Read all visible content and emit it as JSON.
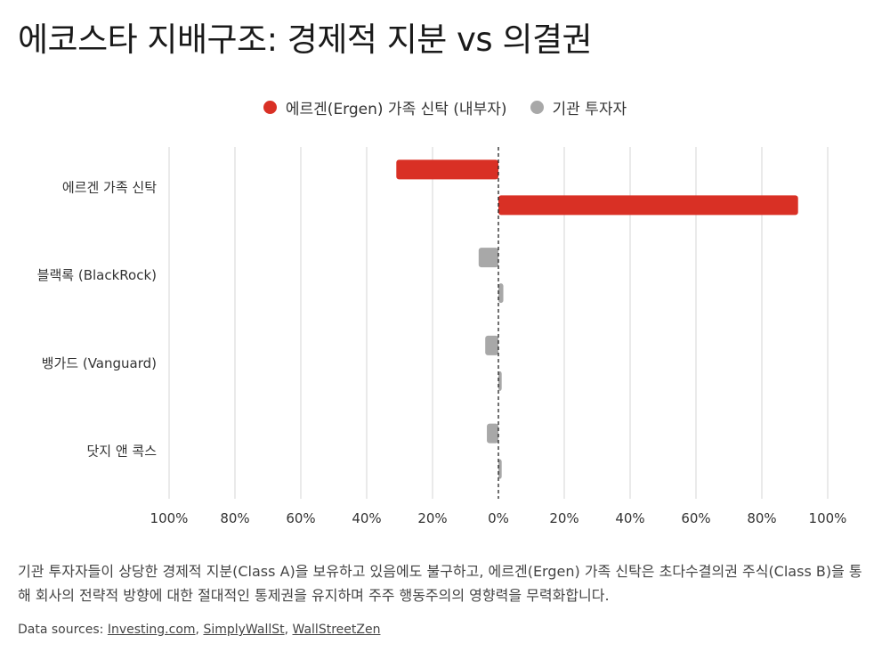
{
  "title": "에코스타 지배구조: 경제적 지분 vs 의결권",
  "legend": [
    {
      "label": "에르겐(Ergen) 가족 신탁 (내부자)",
      "color": "#d93025"
    },
    {
      "label": "기관 투자자",
      "color": "#a8a8a8"
    }
  ],
  "chart_data": {
    "type": "bar",
    "orientation": "horizontal",
    "categories": [
      "에르겐 가족 신탁",
      "블랙록 (BlackRock)",
      "뱅가드 (Vanguard)",
      "닷지 앤 콕스"
    ],
    "x_ticks": [
      "100%",
      "80%",
      "60%",
      "40%",
      "20%",
      "0%",
      "20%",
      "40%",
      "60%",
      "80%",
      "100%"
    ],
    "xlim": [
      -100,
      100
    ],
    "grid": true,
    "legend_position": "top",
    "bars": [
      {
        "category": "에르겐 가족 신탁",
        "left": -31,
        "right": 91,
        "color": "#d93025"
      },
      {
        "category": "블랙록 (BlackRock)",
        "left": -6,
        "right": 1.5,
        "color": "#a8a8a8"
      },
      {
        "category": "뱅가드 (Vanguard)",
        "left": -4,
        "right": 1,
        "color": "#a8a8a8"
      },
      {
        "category": "닷지 앤 콕스",
        "left": -3.5,
        "right": 1,
        "color": "#a8a8a8"
      }
    ]
  },
  "note": "기관 투자자들이 상당한 경제적 지분(Class A)을 보유하고 있음에도 불구하고, 에르겐(Ergen) 가족 신탁은 초다수결의권 주식(Class B)을 통해 회사의 전략적 방향에 대한 절대적인 통제권을 유지하며 주주 행동주의의 영향력을 무력화합니다.",
  "sources": {
    "prefix": "Data sources: ",
    "links": [
      "Investing.com",
      "SimplyWallSt",
      "WallStreetZen"
    ]
  }
}
